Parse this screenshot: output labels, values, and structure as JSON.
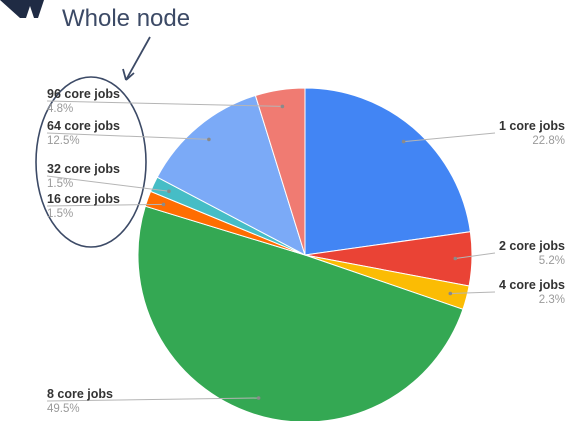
{
  "annotation": {
    "text": "Whole node"
  },
  "chart_data": {
    "type": "pie",
    "slices": [
      {
        "label": "1 core jobs",
        "percent_label": "22.8%",
        "value": 22.8,
        "color": "#4285f4"
      },
      {
        "label": "2 core jobs",
        "percent_label": "5.2%",
        "value": 5.2,
        "color": "#ea4335"
      },
      {
        "label": "4 core jobs",
        "percent_label": "2.3%",
        "value": 2.3,
        "color": "#fbbc04"
      },
      {
        "label": "8 core jobs",
        "percent_label": "49.5%",
        "value": 49.5,
        "color": "#34a853"
      },
      {
        "label": "16 core jobs",
        "percent_label": "1.5%",
        "value": 1.5,
        "color": "#ff6d01"
      },
      {
        "label": "32 core jobs",
        "percent_label": "1.5%",
        "value": 1.5,
        "color": "#46bdc6"
      },
      {
        "label": "64 core jobs",
        "percent_label": "12.5%",
        "value": 12.5,
        "color": "#7baaf7"
      },
      {
        "label": "96 core jobs",
        "percent_label": "4.8%",
        "value": 4.8,
        "color": "#f07b72"
      }
    ],
    "start_angle": "12 o'clock",
    "direction": "clockwise",
    "legend": "none (labels beside slices)"
  }
}
